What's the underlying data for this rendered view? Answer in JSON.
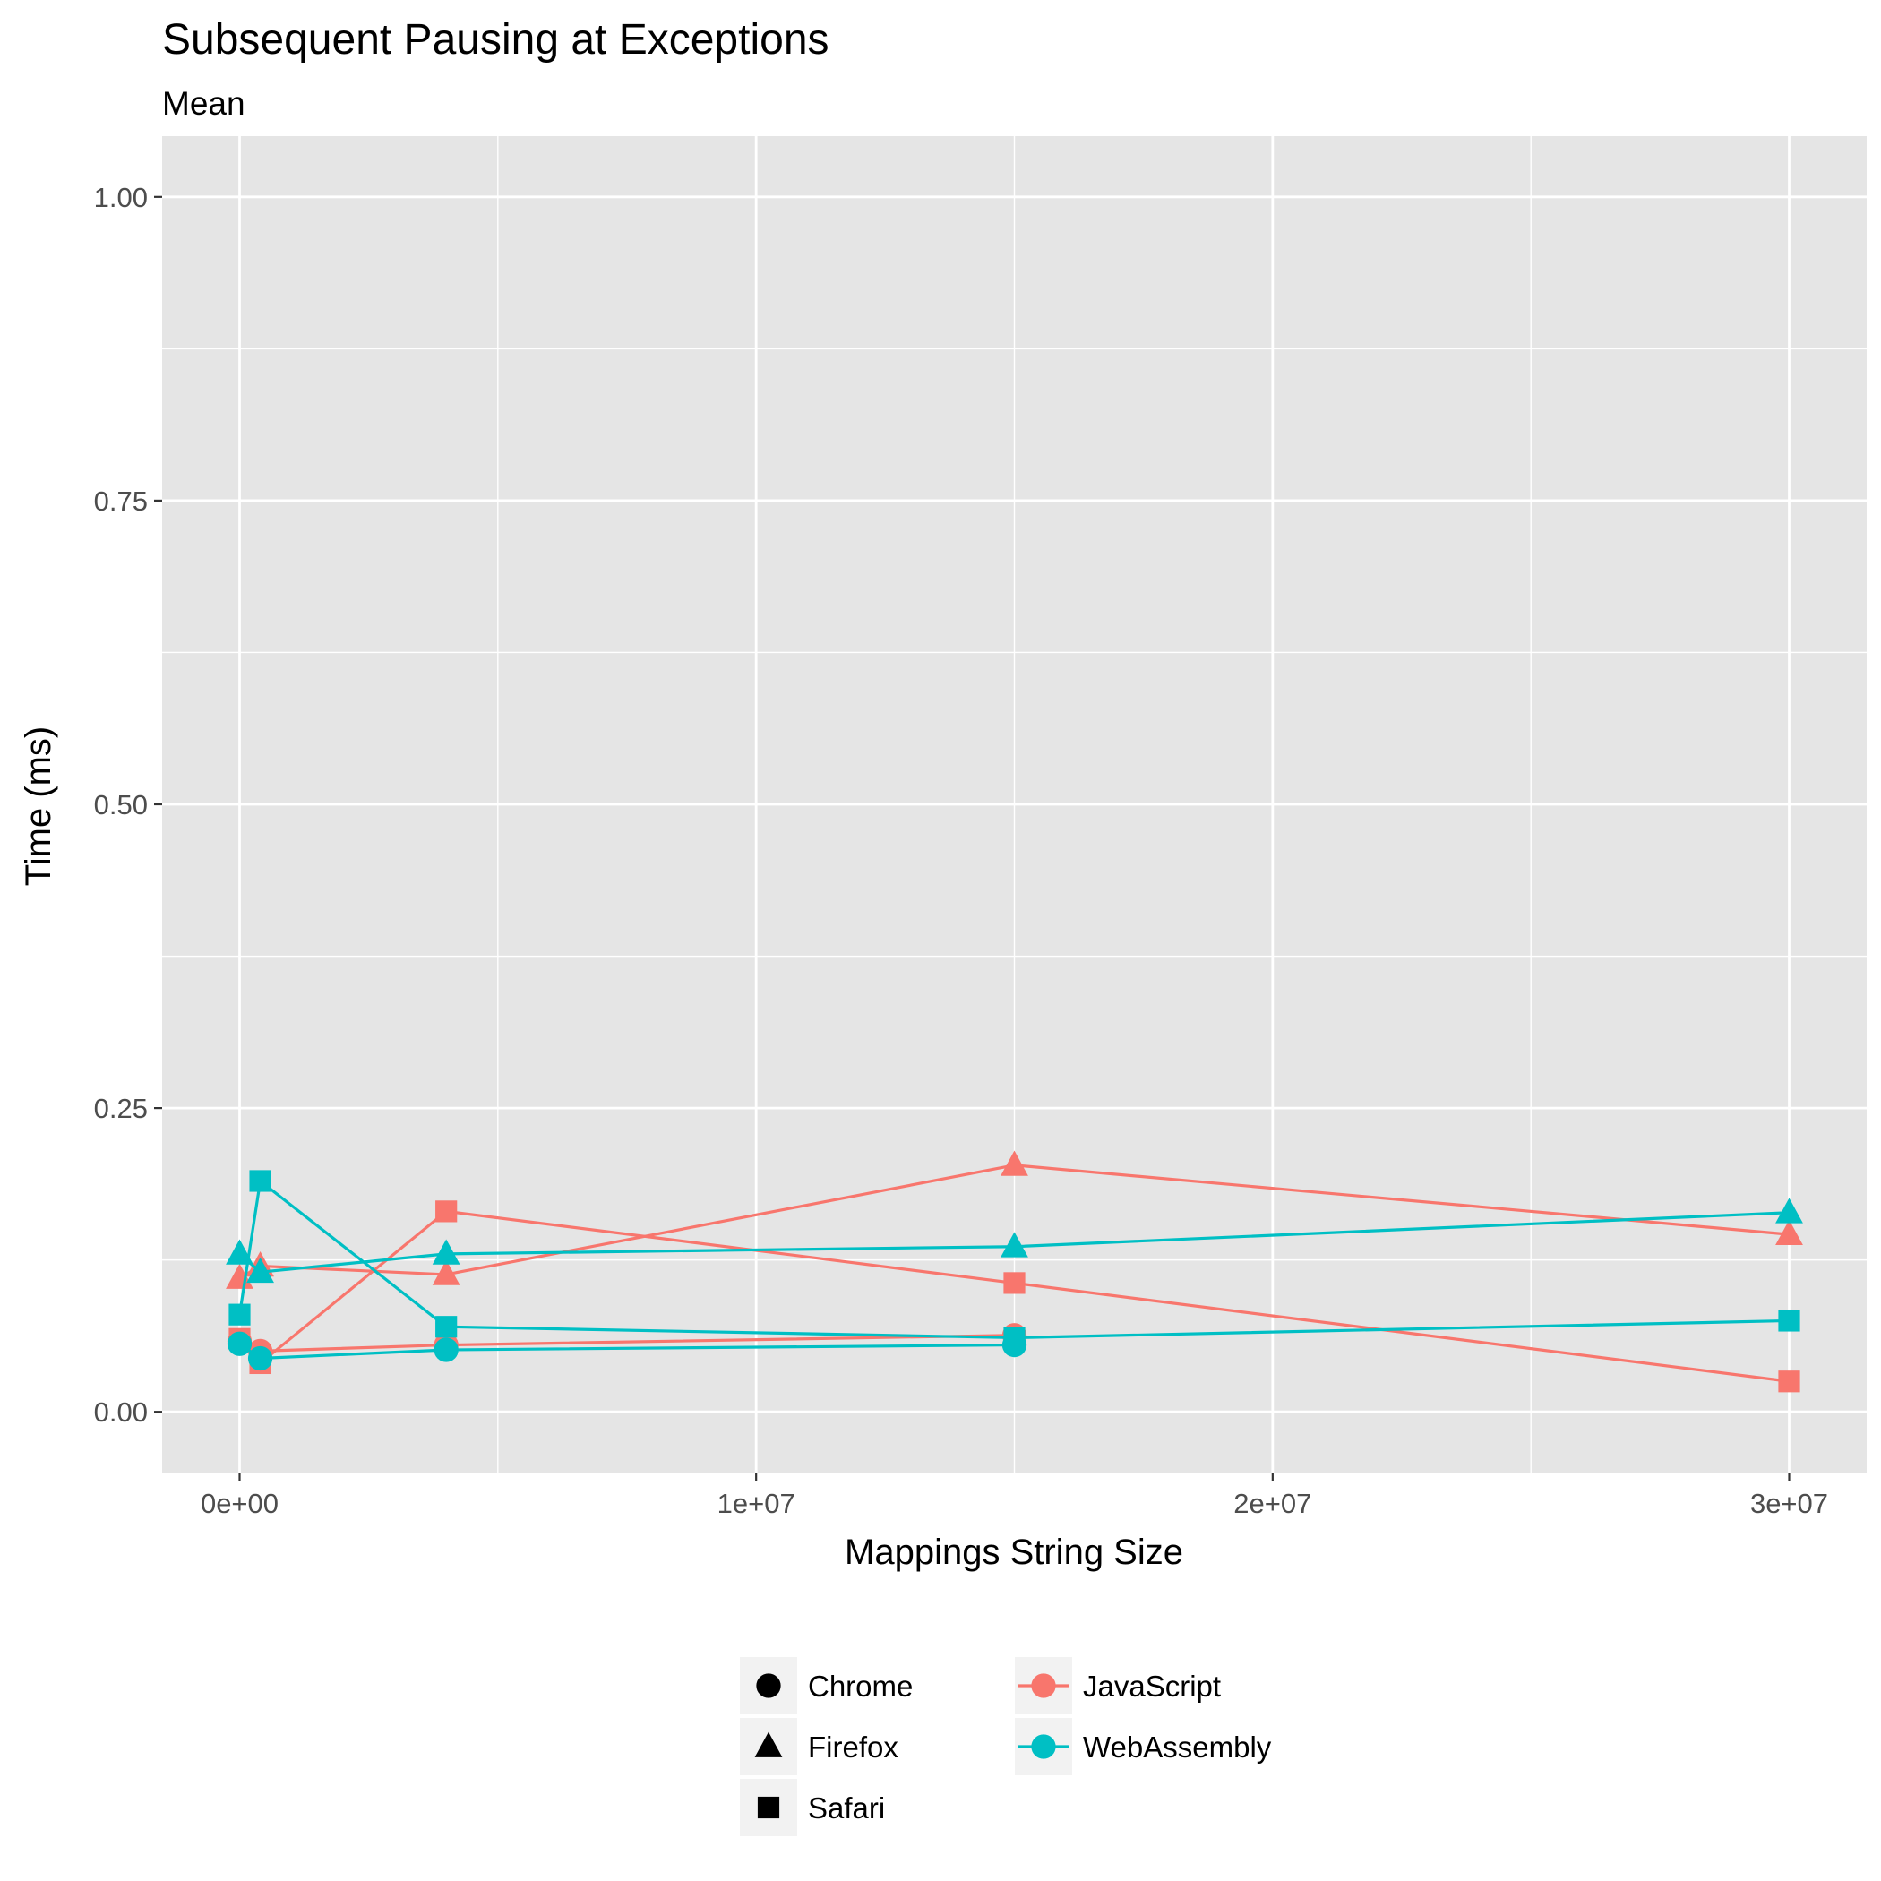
{
  "chart_data": {
    "type": "line",
    "title": "Subsequent Pausing at Exceptions",
    "subtitle": "Mean",
    "xlabel": "Mappings String Size",
    "ylabel": "Time (ms)",
    "xlim": [
      -1500000,
      31500000
    ],
    "ylim": [
      -0.05,
      1.05
    ],
    "x_ticks": [
      0,
      10000000,
      20000000,
      30000000
    ],
    "x_tick_labels": [
      "0e+00",
      "1e+07",
      "2e+07",
      "3e+07"
    ],
    "y_ticks": [
      0,
      0.25,
      0.5,
      0.75,
      1.0
    ],
    "y_tick_labels": [
      "0.00",
      "0.25",
      "0.50",
      "0.75",
      "1.00"
    ],
    "grid": true,
    "legend_position": "bottom",
    "colors": {
      "JavaScript": "#f8766d",
      "WebAssembly": "#00bfc4",
      "panel_background": "#e5e5e5",
      "grid": "#ffffff"
    },
    "shape_legend": [
      {
        "label": "Chrome",
        "shape": "circle"
      },
      {
        "label": "Firefox",
        "shape": "triangle"
      },
      {
        "label": "Safari",
        "shape": "square"
      }
    ],
    "color_legend": [
      {
        "label": "JavaScript",
        "color": "#f8766d"
      },
      {
        "label": "WebAssembly",
        "color": "#00bfc4"
      }
    ],
    "series": [
      {
        "implementation": "JavaScript",
        "browser": "Chrome",
        "color": "#f8766d",
        "shape": "circle",
        "x": [
          0,
          400000,
          4000000,
          15000000
        ],
        "y": [
          0.058,
          0.05,
          0.055,
          0.063
        ]
      },
      {
        "implementation": "JavaScript",
        "browser": "Firefox",
        "color": "#f8766d",
        "shape": "triangle",
        "x": [
          0,
          400000,
          4000000,
          15000000,
          30000000
        ],
        "y": [
          0.11,
          0.12,
          0.113,
          0.203,
          0.146
        ]
      },
      {
        "implementation": "JavaScript",
        "browser": "Safari",
        "color": "#f8766d",
        "shape": "square",
        "x": [
          0,
          400000,
          4000000,
          15000000,
          30000000
        ],
        "y": [
          0.06,
          0.04,
          0.165,
          0.106,
          0.025
        ]
      },
      {
        "implementation": "WebAssembly",
        "browser": "Chrome",
        "color": "#00bfc4",
        "shape": "circle",
        "x": [
          0,
          400000,
          4000000,
          15000000
        ],
        "y": [
          0.056,
          0.044,
          0.051,
          0.055
        ]
      },
      {
        "implementation": "WebAssembly",
        "browser": "Firefox",
        "color": "#00bfc4",
        "shape": "triangle",
        "x": [
          0,
          400000,
          4000000,
          15000000,
          30000000
        ],
        "y": [
          0.13,
          0.115,
          0.13,
          0.136,
          0.164
        ]
      },
      {
        "implementation": "WebAssembly",
        "browser": "Safari",
        "color": "#00bfc4",
        "shape": "square",
        "x": [
          0,
          400000,
          4000000,
          15000000,
          30000000
        ],
        "y": [
          0.08,
          0.19,
          0.07,
          0.061,
          0.075
        ]
      }
    ]
  }
}
